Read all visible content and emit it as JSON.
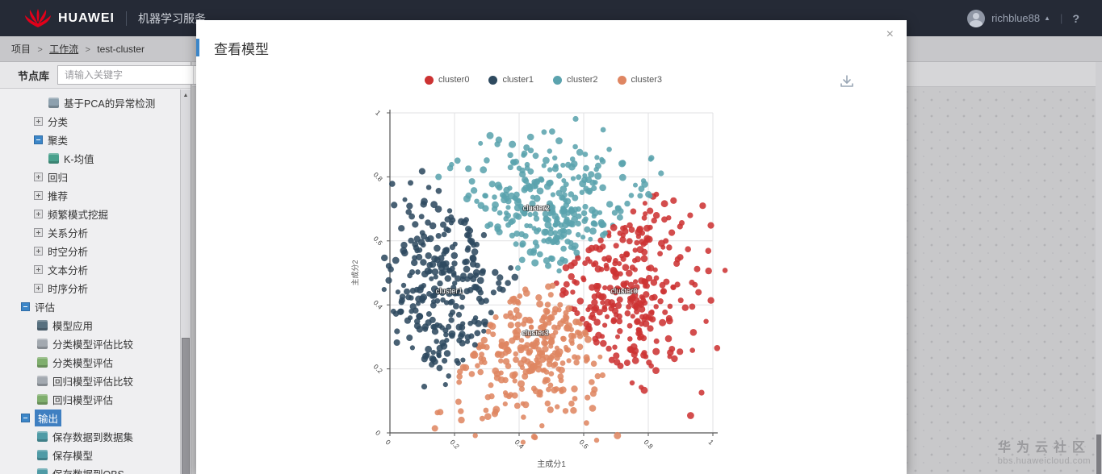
{
  "topbar": {
    "brand": "HUAWEI",
    "product": "机器学习服务",
    "username": "richblue88",
    "help": "?"
  },
  "breadcrumb": {
    "items": [
      "项目",
      "工作流",
      "test-cluster"
    ],
    "separator": ">"
  },
  "sidebar": {
    "header": "节点库",
    "search_placeholder": "请输入关键字",
    "items": [
      {
        "label": "基于PCA的异常检测",
        "level": 2,
        "kind": "leaf",
        "icon": "pca-anomaly-icon",
        "icon_color": "#8da0ae"
      },
      {
        "label": "分类",
        "level": 1,
        "kind": "group",
        "state": "collapsed"
      },
      {
        "label": "聚类",
        "level": 1,
        "kind": "group",
        "state": "expanded"
      },
      {
        "label": "K-均值",
        "level": 2,
        "kind": "leaf",
        "icon": "kmeans-icon",
        "icon_color": "#49a08c"
      },
      {
        "label": "回归",
        "level": 1,
        "kind": "group",
        "state": "collapsed"
      },
      {
        "label": "推荐",
        "level": 1,
        "kind": "group",
        "state": "collapsed"
      },
      {
        "label": "频繁模式挖掘",
        "level": 1,
        "kind": "group",
        "state": "collapsed"
      },
      {
        "label": "关系分析",
        "level": 1,
        "kind": "group",
        "state": "collapsed"
      },
      {
        "label": "时空分析",
        "level": 1,
        "kind": "group",
        "state": "collapsed"
      },
      {
        "label": "文本分析",
        "level": 1,
        "kind": "group",
        "state": "collapsed"
      },
      {
        "label": "时序分析",
        "level": 1,
        "kind": "group",
        "state": "collapsed"
      },
      {
        "label": "评估",
        "level": 0,
        "kind": "group",
        "state": "expanded"
      },
      {
        "label": "模型应用",
        "level": 1,
        "kind": "leaf",
        "icon": "model-apply-icon",
        "icon_color": "#57707f"
      },
      {
        "label": "分类模型评估比较",
        "level": 1,
        "kind": "leaf",
        "icon": "classification-eval-compare-icon",
        "icon_color": "#a3a9b0"
      },
      {
        "label": "分类模型评估",
        "level": 1,
        "kind": "leaf",
        "icon": "classification-eval-icon",
        "icon_color": "#7fae6d"
      },
      {
        "label": "回归模型评估比较",
        "level": 1,
        "kind": "leaf",
        "icon": "regression-eval-compare-icon",
        "icon_color": "#a3a9b0"
      },
      {
        "label": "回归模型评估",
        "level": 1,
        "kind": "leaf",
        "icon": "regression-eval-icon",
        "icon_color": "#7fae6d"
      },
      {
        "label": "输出",
        "level": 0,
        "kind": "group",
        "state": "expanded",
        "selected": true
      },
      {
        "label": "保存数据到数据集",
        "level": 1,
        "kind": "leaf",
        "icon": "save-dataset-icon",
        "icon_color": "#4f9ba6"
      },
      {
        "label": "保存模型",
        "level": 1,
        "kind": "leaf",
        "icon": "save-model-icon",
        "icon_color": "#4f9ba6"
      },
      {
        "label": "保存数据到OBS",
        "level": 1,
        "kind": "leaf",
        "icon": "save-obs-icon",
        "icon_color": "#4f9ba6"
      }
    ]
  },
  "modal": {
    "title": "查看模型",
    "close": "×"
  },
  "chart_data": {
    "type": "scatter",
    "title": "",
    "xlabel": "主成分1",
    "ylabel": "主成分2",
    "xlim": [
      0,
      1
    ],
    "ylim": [
      0,
      1
    ],
    "xticks": [
      0,
      0.2,
      0.4,
      0.6,
      0.8,
      1
    ],
    "yticks": [
      0,
      0.2,
      0.4,
      0.6,
      0.8,
      1
    ],
    "grid": true,
    "legend_position": "top",
    "series": [
      {
        "name": "cluster0",
        "color": "#cc3232",
        "centroid": [
          0.73,
          0.44
        ],
        "spread": [
          0.12,
          0.15
        ],
        "count": 310,
        "label_pos": [
          0.725,
          0.443
        ]
      },
      {
        "name": "cluster1",
        "color": "#2e4a5f",
        "centroid": [
          0.16,
          0.43
        ],
        "spread": [
          0.105,
          0.145
        ],
        "count": 290,
        "label_pos": [
          0.183,
          0.443
        ]
      },
      {
        "name": "cluster2",
        "color": "#5ba3ae",
        "centroid": [
          0.5,
          0.72
        ],
        "spread": [
          0.13,
          0.105
        ],
        "count": 300,
        "label_pos": [
          0.453,
          0.703
        ]
      },
      {
        "name": "cluster3",
        "color": "#df8662",
        "centroid": [
          0.45,
          0.25
        ],
        "spread": [
          0.1,
          0.105
        ],
        "count": 270,
        "label_pos": [
          0.45,
          0.312
        ]
      }
    ],
    "draw_order": [
      1,
      2,
      3,
      0
    ],
    "seed": 7,
    "points_note": "k-means result clouds; individual points procedurally approximated from centroid/spread, colored by nearest centroid"
  },
  "watermark": {
    "line1": "华为云社区",
    "line2": "bbs.huaweicloud.com"
  },
  "colors": {
    "topbar_bg": "#252a36",
    "selected_node_bg": "#3f7fc1",
    "expand_box_blue": "#3c86c8",
    "huawei_red": "#e2001a"
  }
}
